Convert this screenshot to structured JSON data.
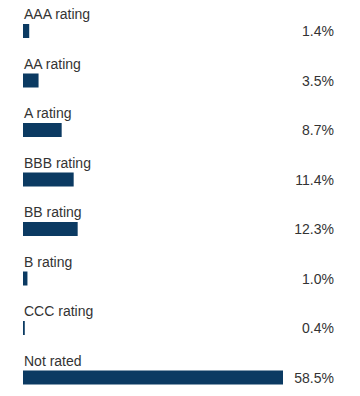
{
  "chart_data": {
    "type": "bar",
    "orientation": "horizontal",
    "categories": [
      "AAA rating",
      "AA rating",
      "A rating",
      "BBB rating",
      "BB rating",
      "B rating",
      "CCC rating",
      "Not rated"
    ],
    "values": [
      1.4,
      3.5,
      8.7,
      11.4,
      12.3,
      1.0,
      0.4,
      58.5
    ],
    "value_labels": [
      "1.4%",
      "3.5%",
      "8.7%",
      "11.4%",
      "12.3%",
      "1.0%",
      "0.4%",
      "58.5%"
    ],
    "data_labels": true,
    "tick_labels": "y",
    "color": "#0b3a62"
  }
}
